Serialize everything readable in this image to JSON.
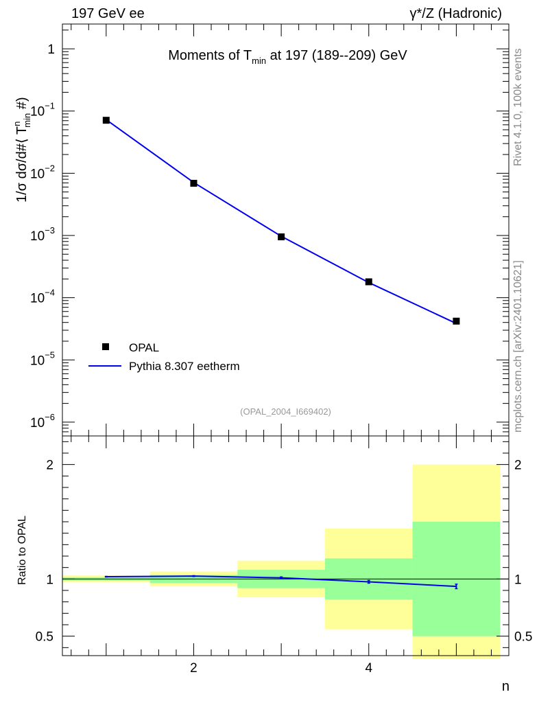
{
  "header": {
    "left": "197 GeV ee",
    "right": "γ*/Z (Hadronic)"
  },
  "side_labels": {
    "rivet": "Rivet 4.1.0,  100k events",
    "mcplots": "mcplots.cern.ch [arXiv:2401.10621]"
  },
  "colors": {
    "data": "#000000",
    "mc": "#0000ee",
    "band_inner": "#99ff99",
    "band_outer": "#ffff99"
  },
  "chart_data": [
    {
      "type": "scatter",
      "title_parts": {
        "pre": "Moments of T",
        "sub": "min",
        "post": " at 197 (189--209) GeV"
      },
      "ylabel": "1/σ  dσ/d#⟨ T",
      "ylabel_sup": "n",
      "ylabel_sub": "min",
      "ylabel_end": " #)",
      "yscale": "log",
      "ylim": [
        6e-07,
        2.5
      ],
      "xlim": [
        0.5,
        5.6
      ],
      "y_ticks": [
        {
          "v": 1,
          "base": "1",
          "exp": ""
        },
        {
          "v": 0.1,
          "base": "10",
          "exp": "−1"
        },
        {
          "v": 0.01,
          "base": "10",
          "exp": "−2"
        },
        {
          "v": 0.001,
          "base": "10",
          "exp": "−3"
        },
        {
          "v": 0.0001,
          "base": "10",
          "exp": "−4"
        },
        {
          "v": 1e-05,
          "base": "10",
          "exp": "−5"
        },
        {
          "v": 1e-06,
          "base": "10",
          "exp": "−6"
        }
      ],
      "series": [
        {
          "name": "OPAL",
          "kind": "points",
          "x": [
            1,
            2,
            3,
            4,
            5
          ],
          "y": [
            0.071,
            0.0069,
            0.00095,
            0.00018,
            4.2e-05
          ]
        },
        {
          "name": "Pythia 8.307 eetherm",
          "kind": "line",
          "x": [
            1,
            2,
            3,
            4,
            5
          ],
          "y": [
            0.0725,
            0.0071,
            0.00097,
            0.000175,
            3.85e-05
          ]
        }
      ],
      "annotation": "(OPAL_2004_I669402)",
      "legend": "middle-left"
    },
    {
      "type": "line",
      "ylabel": "Ratio to OPAL",
      "xlabel": "n",
      "ylim": [
        0.33,
        2.25
      ],
      "xlim": [
        0.5,
        5.6
      ],
      "x_ticks": [
        {
          "v": 2,
          "label": "2"
        },
        {
          "v": 4,
          "label": "4"
        }
      ],
      "y_ticks": [
        {
          "v": 0.5,
          "label": "0.5"
        },
        {
          "v": 1,
          "label": "1"
        },
        {
          "v": 2,
          "label": "2"
        }
      ],
      "bins": [
        {
          "lo": 0.5,
          "hi": 1.5,
          "inner": [
            0.985,
            1.015
          ],
          "outer": [
            0.97,
            1.03
          ]
        },
        {
          "lo": 1.5,
          "hi": 2.5,
          "inner": [
            0.965,
            1.035
          ],
          "outer": [
            0.935,
            1.065
          ]
        },
        {
          "lo": 2.5,
          "hi": 3.5,
          "inner": [
            0.92,
            1.08
          ],
          "outer": [
            0.84,
            1.16
          ]
        },
        {
          "lo": 3.5,
          "hi": 4.5,
          "inner": [
            0.82,
            1.18
          ],
          "outer": [
            0.56,
            1.44
          ]
        },
        {
          "lo": 4.5,
          "hi": 5.5,
          "inner": [
            0.5,
            1.5
          ],
          "outer": [
            0.3,
            2.0
          ]
        }
      ],
      "ratio": {
        "name": "Pythia 8.307 eetherm / OPAL",
        "x": [
          1,
          2,
          3,
          4,
          5
        ],
        "y": [
          1.02,
          1.025,
          1.01,
          0.975,
          0.935
        ],
        "err": [
          0.003,
          0.004,
          0.008,
          0.012,
          0.02
        ]
      }
    }
  ]
}
